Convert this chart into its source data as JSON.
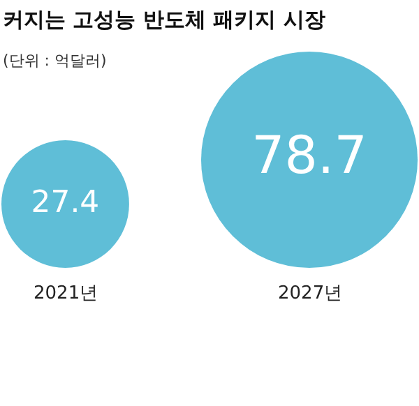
{
  "chart_data": {
    "type": "other",
    "title": "커지는 고성능 반도체 패키지 시장",
    "subtitle": "(단위 : 억달러)",
    "categories": [
      "2021년",
      "2027년"
    ],
    "values": [
      27.4,
      78.7
    ],
    "color": "#1ba3c6",
    "data_labels": true
  }
}
